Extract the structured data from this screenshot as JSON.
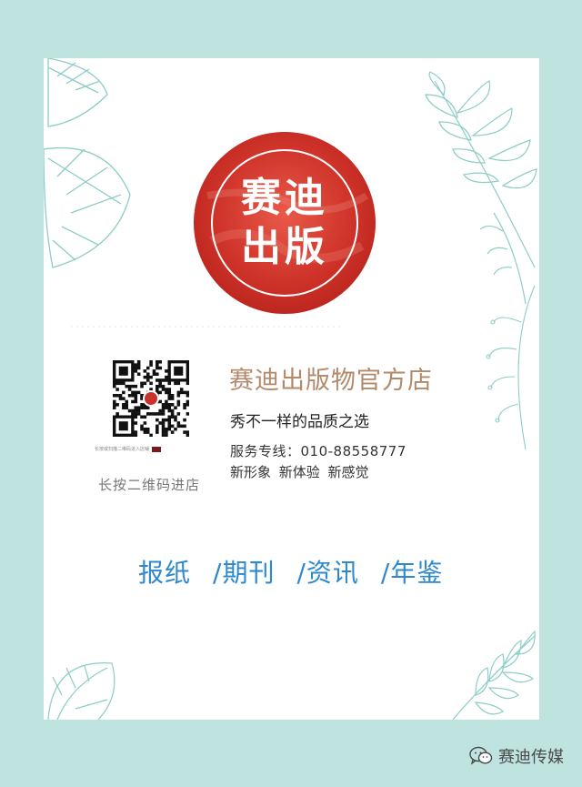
{
  "logo": {
    "line1": "赛迪",
    "line2": "出版",
    "color": "#d33a2c"
  },
  "qr": {
    "caption": "长按或扫描二维码进入店铺",
    "hint": "长按二维码进店"
  },
  "shop": {
    "title": "赛迪出版物官方店",
    "slogan": "秀不一样的品质之选",
    "hotline": "服务专线：010-88558777",
    "features": "新形象 新体验 新感觉"
  },
  "categories": [
    "报纸",
    "/期刊",
    "/资讯",
    "/年鉴"
  ],
  "watermark": {
    "text": "赛迪传媒",
    "icon": "wechat-icon"
  },
  "colors": {
    "frame": "#bfe4e0",
    "card": "#ffffff",
    "accent_gold": "#b3896a",
    "category_blue": "#2d88cc",
    "leaf_outline": "#8ccdc6"
  }
}
